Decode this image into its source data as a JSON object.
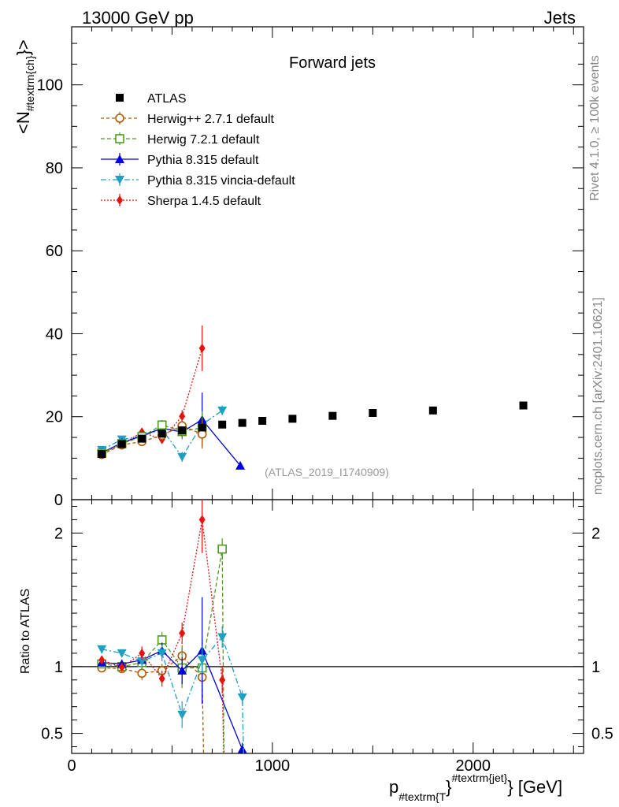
{
  "header": {
    "energy": "13000 GeV pp",
    "category": "Jets"
  },
  "side": {
    "rivet": "Rivet 4.1.0, ≥ 100k events",
    "mcplots": "mcplots.cern.ch [arXiv:2401.10621]"
  },
  "chart_data": {
    "type": "scatter",
    "title": "Forward jets",
    "analysis": "(ATLAS_2019_I1740909)",
    "xlabel": "p_{#textrm{T}}^{#textrm{jet}} [GeV]",
    "xlabel_parts": {
      "p": "p",
      "sub": "#textrm{T",
      "close": "}",
      "sup": "#textrm{jet}",
      "unit": "} [GeV]"
    },
    "ylabel_parts": {
      "open": "<N",
      "sub": "#textrm{ch}",
      "close": "}>"
    },
    "ratio_ylabel": "Ratio to ATLAS",
    "xlim": [
      0,
      2550
    ],
    "ylim": [
      0,
      114
    ],
    "ratio_ylim": [
      0.35,
      2.25
    ],
    "x_ticks": [
      0,
      1000,
      2000
    ],
    "x_tick_labels": [
      "0",
      "1000",
      "2000"
    ],
    "y_ticks": [
      0,
      20,
      40,
      60,
      80,
      100
    ],
    "y_tick_labels": [
      "0",
      "20",
      "40",
      "60",
      "80",
      "100"
    ],
    "ratio_ticks": [
      0.5,
      1,
      2
    ],
    "ratio_tick_labels": [
      "0.5",
      "1",
      "2"
    ],
    "series": [
      {
        "name": "ATLAS",
        "color": "#000000",
        "marker": "square",
        "dash": "none",
        "x": [
          150,
          250,
          350,
          450,
          550,
          650,
          750,
          850,
          950,
          1100,
          1300,
          1500,
          1800,
          2250
        ],
        "y": [
          11.0,
          13.4,
          14.7,
          15.9,
          16.7,
          17.4,
          18.1,
          18.5,
          19.0,
          19.5,
          20.2,
          20.9,
          21.5,
          22.7
        ],
        "yerr": [
          0.3,
          0.3,
          0.3,
          0.3,
          0.3,
          0.3,
          0.3,
          0.3,
          0.3,
          0.3,
          0.3,
          0.3,
          0.3,
          0.3
        ]
      },
      {
        "name": "Herwig++ 2.7.1 default",
        "color": "#b35806",
        "marker": "open-circle",
        "dash": "4,3",
        "x": [
          150,
          250,
          350,
          450,
          550,
          650
        ],
        "y": [
          10.9,
          13.2,
          14.0,
          15.5,
          17.8,
          15.8
        ],
        "yerr": [
          0.3,
          0.4,
          0.7,
          1.0,
          1.5,
          3.5
        ],
        "ratio": [
          0.99,
          0.985,
          0.95,
          0.97,
          1.08,
          0.92
        ],
        "ratio_err": [
          0.02,
          0.02,
          0.05,
          0.05,
          0.08,
          0.2
        ]
      },
      {
        "name": "Herwig 7.2.1 default",
        "color": "#4d9a22",
        "marker": "open-square",
        "dash": "5,3",
        "x": [
          150,
          250,
          350,
          450,
          550,
          650
        ],
        "y": [
          11.2,
          13.5,
          15.2,
          18.0,
          16.5,
          17.3
        ],
        "yerr": [
          0.4,
          0.5,
          0.8,
          1.2,
          2.0,
          4.0
        ],
        "ratio": [
          1.02,
          1.0,
          1.03,
          1.2,
          0.99,
          0.99,
          1.88
        ],
        "ratio_err": [
          0.03,
          0.03,
          0.05,
          0.06,
          0.15,
          0.22,
          0.08
        ],
        "ratio_x": [
          150,
          250,
          350,
          450,
          550,
          650,
          750
        ]
      },
      {
        "name": "Pythia 8.315 default",
        "color": "#0000dd",
        "marker": "triangle",
        "dash": "none",
        "x": [
          150,
          250,
          350,
          450,
          550,
          650,
          840
        ],
        "y": [
          11.3,
          13.7,
          15.4,
          17.2,
          16.3,
          19.3,
          8.2
        ],
        "yerr": [
          0.3,
          0.4,
          0.6,
          1.0,
          1.5,
          6.5,
          0.3
        ],
        "ratio": [
          1.03,
          1.02,
          1.05,
          1.12,
          0.97,
          1.12,
          0.38
        ],
        "ratio_err": [
          0.03,
          0.03,
          0.04,
          0.06,
          0.1,
          0.4,
          0.05
        ],
        "ratio_x": [
          150,
          250,
          350,
          450,
          550,
          650,
          850
        ]
      },
      {
        "name": "Pythia 8.315 vincia-default",
        "color": "#1fa0c0",
        "marker": "triangle-down",
        "dash": "7,3,2,3",
        "x": [
          150,
          250,
          350,
          450,
          550,
          650,
          750
        ],
        "y": [
          12.0,
          14.5,
          15.3,
          17.0,
          10.3,
          18.1,
          21.5
        ],
        "yerr": [
          0.3,
          0.4,
          0.6,
          0.9,
          1.2,
          1.5,
          1.2
        ],
        "ratio": [
          1.13,
          1.1,
          1.04,
          1.1,
          0.64,
          1.05,
          1.22,
          0.77
        ],
        "ratio_err": [
          0.03,
          0.03,
          0.04,
          0.06,
          0.1,
          0.1,
          0.08,
          0.05
        ],
        "ratio_x": [
          150,
          250,
          350,
          450,
          550,
          650,
          750,
          850
        ]
      },
      {
        "name": "Sherpa 1.4.5 default",
        "color": "#e8120e",
        "marker": "diamond",
        "dash": "2,2",
        "x": [
          150,
          250,
          350,
          450,
          550,
          650
        ],
        "y": [
          11.3,
          13.2,
          16.3,
          14.5,
          20.1,
          36.5
        ],
        "yerr": [
          0.3,
          0.4,
          0.7,
          1.0,
          1.5,
          5.5
        ],
        "ratio": [
          1.05,
          0.995,
          1.1,
          0.91,
          1.25,
          2.1,
          0.9
        ],
        "ratio_err": [
          0.03,
          0.03,
          0.05,
          0.06,
          0.08,
          0.25,
          0.1
        ],
        "ratio_x": [
          150,
          250,
          350,
          450,
          550,
          650,
          750
        ]
      }
    ]
  }
}
